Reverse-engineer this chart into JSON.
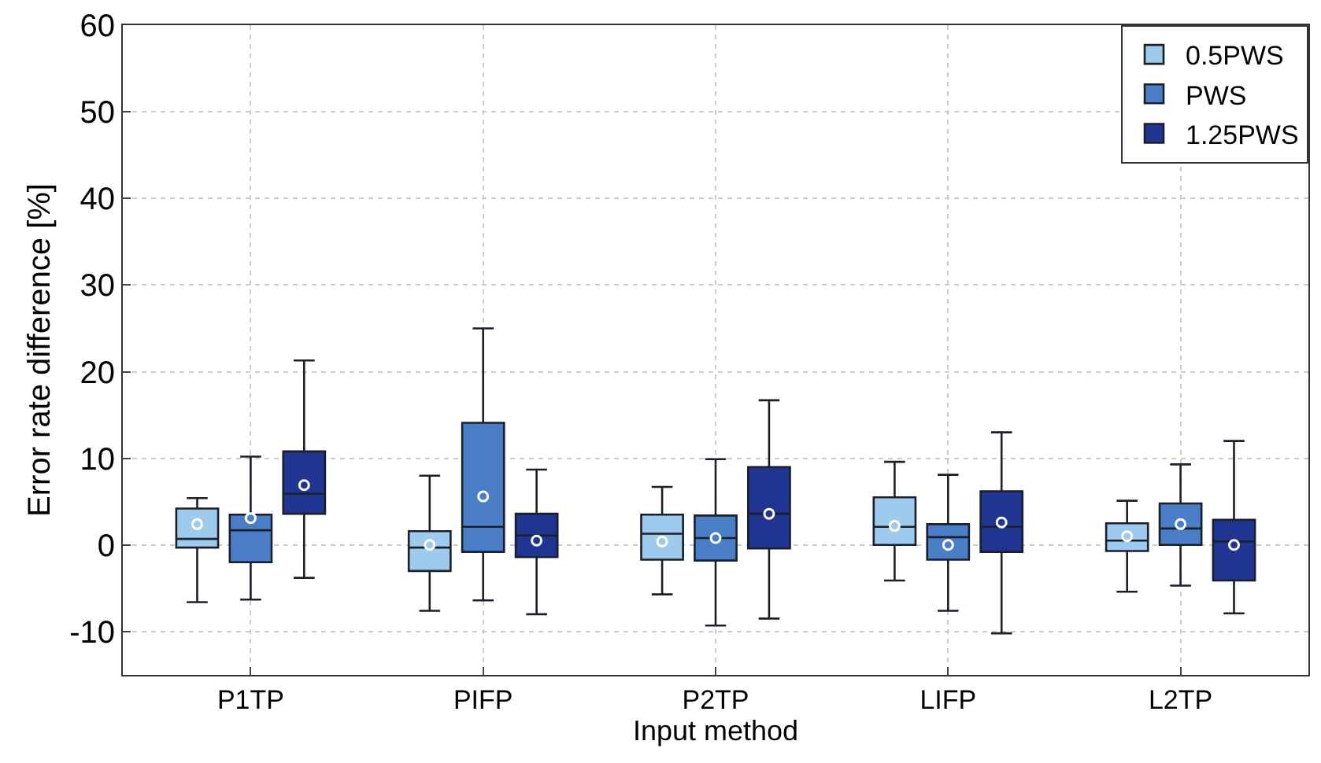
{
  "chart_data": {
    "type": "box",
    "xlabel": "Input method",
    "ylabel": "Error rate difference [%]",
    "categories": [
      "P1TP",
      "PIFP",
      "P2TP",
      "LIFP",
      "L2TP"
    ],
    "ylim": [
      -15,
      60
    ],
    "yticks": [
      -10,
      0,
      10,
      20,
      30,
      40,
      50,
      60
    ],
    "grid": true,
    "legend": "top right",
    "series": [
      {
        "name": "0.5PWS",
        "color": "#9dcaed",
        "boxes": [
          {
            "low": -6.6,
            "q1": -0.3,
            "median": 0.7,
            "q3": 4.2,
            "high": 5.4,
            "mean": 2.4
          },
          {
            "low": -7.6,
            "q1": -3.0,
            "median": -0.3,
            "q3": 1.6,
            "high": 8.0,
            "mean": 0
          },
          {
            "low": -5.7,
            "q1": -1.7,
            "median": 1.3,
            "q3": 3.5,
            "high": 6.7,
            "mean": 0.4
          },
          {
            "low": -4.1,
            "q1": 0,
            "median": 2.1,
            "q3": 5.5,
            "high": 9.6,
            "mean": 2.2
          },
          {
            "low": -5.4,
            "q1": -0.7,
            "median": 0.5,
            "q3": 2.5,
            "high": 5.1,
            "mean": 1.0
          }
        ]
      },
      {
        "name": "PWS",
        "color": "#4a7fc8",
        "boxes": [
          {
            "low": -6.3,
            "q1": -2.0,
            "median": 1.7,
            "q3": 3.5,
            "high": 10.2,
            "mean": 3.1
          },
          {
            "low": -6.4,
            "q1": -0.8,
            "median": 2.1,
            "q3": 14.1,
            "high": 25.0,
            "mean": 5.6
          },
          {
            "low": -9.3,
            "q1": -1.8,
            "median": 0.8,
            "q3": 3.4,
            "high": 9.9,
            "mean": 0.8
          },
          {
            "low": -7.6,
            "q1": -1.7,
            "median": 0.9,
            "q3": 2.4,
            "high": 8.1,
            "mean": 0
          },
          {
            "low": -4.7,
            "q1": 0,
            "median": 1.9,
            "q3": 4.8,
            "high": 9.3,
            "mean": 2.4
          }
        ]
      },
      {
        "name": "1.25PWS",
        "color": "#1f3591",
        "boxes": [
          {
            "low": -3.8,
            "q1": 3.6,
            "median": 5.9,
            "q3": 10.8,
            "high": 21.3,
            "mean": 6.9
          },
          {
            "low": -8.0,
            "q1": -1.4,
            "median": 1.1,
            "q3": 3.6,
            "high": 8.7,
            "mean": 0.5
          },
          {
            "low": -8.5,
            "q1": -0.4,
            "median": 3.6,
            "q3": 9.0,
            "high": 16.7,
            "mean": 3.6
          },
          {
            "low": -10.2,
            "q1": -0.8,
            "median": 2.1,
            "q3": 6.2,
            "high": 13.0,
            "mean": 2.6
          },
          {
            "low": -7.9,
            "q1": -4.1,
            "median": 0.4,
            "q3": 2.9,
            "high": 12.0,
            "mean": 0
          }
        ]
      }
    ]
  }
}
